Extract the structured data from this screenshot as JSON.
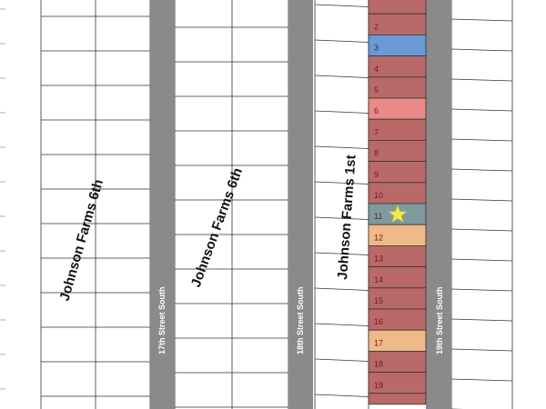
{
  "map": {
    "subdivisions": [
      {
        "key": "left",
        "label": "Johnson Farms 6th"
      },
      {
        "key": "middle",
        "label": "Johnson Farms 6th"
      },
      {
        "key": "right",
        "label": "Johnson Farms 1st"
      }
    ],
    "streets": [
      {
        "key": "17th",
        "label": "17th Street South"
      },
      {
        "key": "18th",
        "label": "18th Street South"
      },
      {
        "key": "19th",
        "label": "19th Street South"
      }
    ],
    "highlighted_lots": [
      {
        "number": "",
        "category": "sold"
      },
      {
        "number": "2",
        "category": "sold"
      },
      {
        "number": "3",
        "category": "blue"
      },
      {
        "number": "4",
        "category": "sold"
      },
      {
        "number": "5",
        "category": "sold"
      },
      {
        "number": "6",
        "category": "pink"
      },
      {
        "number": "7",
        "category": "sold"
      },
      {
        "number": "8",
        "category": "sold"
      },
      {
        "number": "9",
        "category": "sold"
      },
      {
        "number": "10",
        "category": "sold"
      },
      {
        "number": "11",
        "category": "featured"
      },
      {
        "number": "12",
        "category": "available"
      },
      {
        "number": "13",
        "category": "sold"
      },
      {
        "number": "14",
        "category": "sold"
      },
      {
        "number": "15",
        "category": "sold"
      },
      {
        "number": "16",
        "category": "sold"
      },
      {
        "number": "17",
        "category": "available"
      },
      {
        "number": "18",
        "category": "sold"
      },
      {
        "number": "19",
        "category": "sold"
      },
      {
        "number": "",
        "category": "sold"
      }
    ],
    "featured_lot_marker": "star-icon",
    "colors": {
      "sold": "#b96a68",
      "blue": "#6a9ad6",
      "pink": "#ea8a88",
      "featured": "#7f9a9e",
      "available": "#f0b989",
      "street": "#8a8a8a",
      "star": "#f5e94a",
      "lot_line": "#333333"
    }
  }
}
